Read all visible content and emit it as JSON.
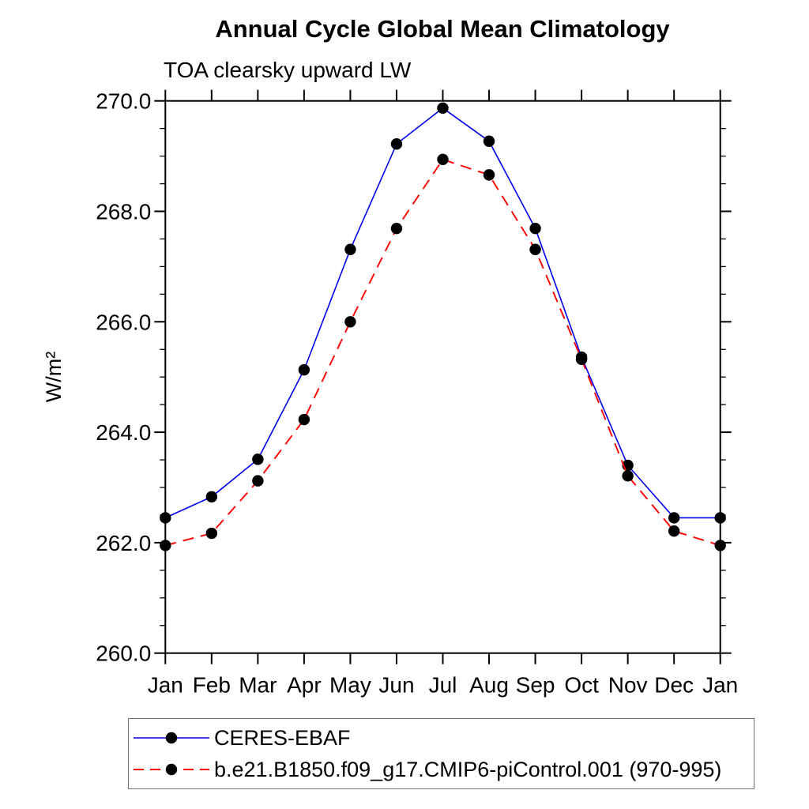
{
  "page": {
    "background": "#ffffff",
    "axis_color": "#000000"
  },
  "chart_data": {
    "type": "line",
    "title": "Annual Cycle Global Mean Climatology",
    "subtitle": "TOA clearsky upward LW",
    "ylabel": "W/m²",
    "xlabel": "",
    "categories": [
      "Jan",
      "Feb",
      "Mar",
      "Apr",
      "May",
      "Jun",
      "Jul",
      "Aug",
      "Sep",
      "Oct",
      "Nov",
      "Dec",
      "Jan"
    ],
    "ylim": [
      260.0,
      270.0
    ],
    "y_major_step": 2.0,
    "y_minor_step": 0.5,
    "y_tick_decimals": 1,
    "grid": false,
    "legend_position": "bottom",
    "legend_border_color": "#707070",
    "series": [
      {
        "name": "CERES-EBAF",
        "color": "#0000ee",
        "style": "solid",
        "marker": "circle",
        "marker_color": "#000000",
        "values": [
          262.45,
          262.83,
          263.51,
          265.13,
          267.31,
          269.22,
          269.87,
          269.27,
          267.69,
          265.36,
          263.4,
          262.45,
          262.45
        ]
      },
      {
        "name": "b.e21.B1850.f09_g17.CMIP6-piControl.001 (970-995)",
        "color": "#ff0000",
        "style": "dashed",
        "marker": "circle",
        "marker_color": "#000000",
        "values": [
          261.95,
          262.17,
          263.12,
          264.23,
          266.0,
          267.69,
          268.94,
          268.66,
          267.31,
          265.32,
          263.21,
          262.21,
          261.95
        ]
      }
    ]
  }
}
